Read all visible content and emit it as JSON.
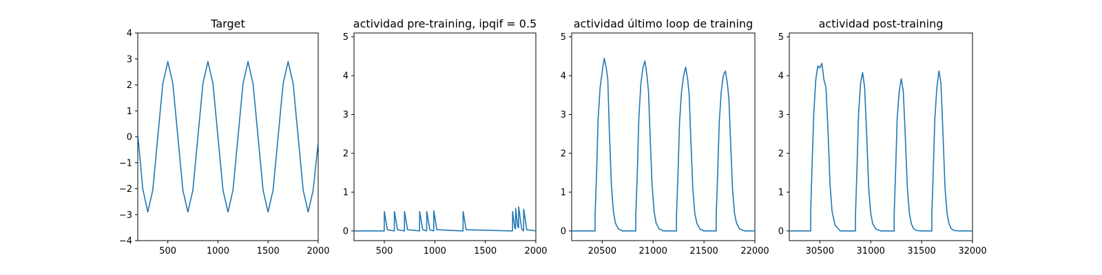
{
  "chart_data": [
    {
      "type": "line",
      "title": "Target",
      "xlabel": "",
      "ylabel": "",
      "xlim": [
        200,
        2000
      ],
      "ylim": [
        -4,
        4
      ],
      "xticks": [
        500,
        1000,
        1500,
        2000
      ],
      "yticks": [
        -4,
        -3,
        -2,
        -1,
        0,
        1,
        2,
        3,
        4
      ],
      "grid": false,
      "series": [
        {
          "color": "#1f77b4",
          "x": [
            200,
            250,
            300,
            350,
            400,
            450,
            500,
            550,
            600,
            650,
            700,
            750,
            800,
            850,
            900,
            950,
            1000,
            1050,
            1100,
            1150,
            1200,
            1250,
            1300,
            1350,
            1400,
            1450,
            1500,
            1550,
            1600,
            1650,
            1700,
            1750,
            1800,
            1850,
            1900,
            1950,
            2000
          ],
          "y": [
            0.1,
            -2.0,
            -2.9,
            -2.05,
            0.0,
            2.05,
            2.9,
            2.05,
            0.0,
            -2.05,
            -2.9,
            -2.05,
            0.0,
            2.05,
            2.9,
            2.05,
            0.0,
            -2.05,
            -2.9,
            -2.05,
            0.0,
            2.05,
            2.9,
            2.05,
            0.0,
            -2.05,
            -2.9,
            -2.05,
            0.0,
            2.05,
            2.9,
            2.05,
            0.0,
            -2.05,
            -2.9,
            -2.05,
            -0.2
          ]
        }
      ]
    },
    {
      "type": "line",
      "title": "actividad pre-training, ipqif = 0.5",
      "xlabel": "",
      "ylabel": "",
      "xlim": [
        200,
        2000
      ],
      "ylim": [
        -0.25,
        5.1
      ],
      "xticks": [
        500,
        1000,
        1500,
        2000
      ],
      "yticks": [
        0,
        1,
        2,
        3,
        4,
        5
      ],
      "grid": false,
      "series": [
        {
          "color": "#1f77b4",
          "x": [
            200,
            499,
            500,
            530,
            599,
            600,
            630,
            699,
            700,
            730,
            849,
            850,
            880,
            919,
            920,
            950,
            989,
            990,
            1020,
            1279,
            1280,
            1310,
            1769,
            1770,
            1790,
            1799,
            1800,
            1820,
            1829,
            1830,
            1860,
            1879,
            1880,
            1910,
            2000
          ],
          "y": [
            0,
            0,
            0.5,
            0.03,
            0,
            0.5,
            0.03,
            0,
            0.5,
            0.03,
            0,
            0.5,
            0.03,
            0,
            0.5,
            0.03,
            0,
            0.52,
            0.03,
            0,
            0.5,
            0.03,
            0,
            0.5,
            0.1,
            0.05,
            0.58,
            0.12,
            0.08,
            0.62,
            0.05,
            0,
            0.56,
            0.03,
            0
          ]
        }
      ]
    },
    {
      "type": "line",
      "title": "actividad último loop de training",
      "xlabel": "",
      "ylabel": "",
      "xlim": [
        20200,
        22000
      ],
      "ylim": [
        -0.25,
        5.1
      ],
      "xticks": [
        20500,
        21000,
        21500,
        22000
      ],
      "yticks": [
        0,
        1,
        2,
        3,
        4,
        5
      ],
      "grid": false,
      "series": [
        {
          "color": "#1f77b4",
          "x": [
            20200,
            20430,
            20430,
            20445,
            20460,
            20480,
            20500,
            20520,
            20540,
            20555,
            20570,
            20590,
            20610,
            20630,
            20660,
            20700,
            20830,
            20830,
            20845,
            20860,
            20880,
            20900,
            20920,
            20940,
            20955,
            20970,
            20990,
            21010,
            21030,
            21060,
            21100,
            21230,
            21230,
            21245,
            21260,
            21280,
            21300,
            21320,
            21340,
            21355,
            21370,
            21390,
            21410,
            21430,
            21460,
            21500,
            21620,
            21620,
            21635,
            21650,
            21670,
            21690,
            21710,
            21730,
            21745,
            21760,
            21780,
            21800,
            21820,
            21850,
            21900,
            22000
          ],
          "y": [
            0,
            0,
            0.4,
            1.5,
            2.9,
            3.7,
            4.1,
            4.45,
            4.2,
            3.9,
            2.6,
            1.2,
            0.5,
            0.2,
            0.05,
            0,
            0,
            0.4,
            1.5,
            2.9,
            3.8,
            4.2,
            4.38,
            4.0,
            3.6,
            2.5,
            1.2,
            0.5,
            0.2,
            0.05,
            0,
            0,
            0.4,
            1.5,
            2.8,
            3.6,
            4.0,
            4.22,
            3.9,
            3.5,
            2.4,
            1.1,
            0.45,
            0.2,
            0.05,
            0,
            0,
            0.4,
            1.5,
            2.8,
            3.6,
            4.0,
            4.12,
            3.8,
            3.4,
            2.4,
            1.1,
            0.45,
            0.2,
            0.05,
            0,
            0
          ]
        }
      ]
    },
    {
      "type": "line",
      "title": "actividad post-training",
      "xlabel": "",
      "ylabel": "",
      "xlim": [
        30200,
        32000
      ],
      "ylim": [
        -0.25,
        5.1
      ],
      "xticks": [
        30500,
        31000,
        31500,
        32000
      ],
      "yticks": [
        0,
        1,
        2,
        3,
        4,
        5
      ],
      "grid": false,
      "series": [
        {
          "color": "#1f77b4",
          "x": [
            30200,
            30410,
            30410,
            30425,
            30440,
            30460,
            30480,
            30500,
            30520,
            30540,
            30560,
            30580,
            30600,
            30620,
            30650,
            30700,
            30850,
            30850,
            30865,
            30880,
            30900,
            30920,
            30940,
            30960,
            30980,
            31000,
            31020,
            31050,
            31100,
            31230,
            31230,
            31245,
            31260,
            31280,
            31300,
            31320,
            31340,
            31360,
            31380,
            31400,
            31420,
            31450,
            31500,
            31600,
            31600,
            31615,
            31630,
            31650,
            31670,
            31690,
            31710,
            31730,
            31750,
            31770,
            31790,
            31820,
            31880,
            32000
          ],
          "y": [
            0,
            0,
            0.5,
            1.8,
            3.0,
            3.9,
            4.25,
            4.2,
            4.32,
            3.9,
            3.7,
            2.6,
            1.2,
            0.5,
            0.15,
            0,
            0,
            0.4,
            1.6,
            3.0,
            3.8,
            4.08,
            3.7,
            2.5,
            1.1,
            0.45,
            0.18,
            0.05,
            0,
            0,
            0.4,
            1.6,
            2.9,
            3.6,
            3.92,
            3.6,
            2.4,
            1.1,
            0.45,
            0.18,
            0.06,
            0.01,
            0,
            0,
            0.4,
            1.6,
            2.9,
            3.7,
            4.12,
            3.8,
            2.5,
            1.1,
            0.45,
            0.18,
            0.06,
            0.01,
            0,
            0
          ]
        }
      ]
    }
  ]
}
